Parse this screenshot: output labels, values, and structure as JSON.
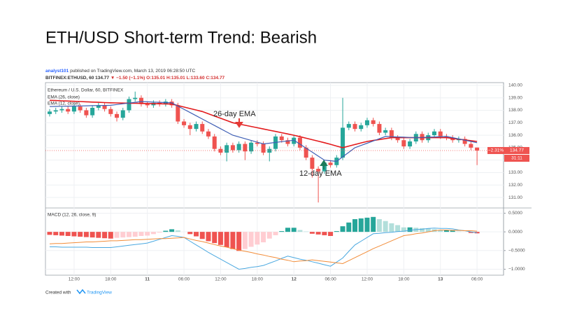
{
  "meta": {
    "author": "analyst101",
    "published": "published on TradingView.com, March 13, 2019 06:28:50 UTC",
    "symbol": "BITFINEX:ETHUSD, 60",
    "price": "134.77",
    "change": "▼ −1.50 (−1.1%)",
    "ohlc": [
      "O:135.01",
      "H:135.01",
      "L:133.60",
      "C:134.77"
    ]
  },
  "footer": {
    "created": "Created with",
    "brand": "TradingView"
  },
  "annotations": [
    "26-day EMA",
    "12-day EMA"
  ],
  "chart_data": [
    {
      "type": "candlestick",
      "title": "ETH/USD Short-term Trend: Bearish",
      "legend_title": "Ethereum / U.S. Dollar, 60, BITFINEX",
      "up_color": "#26a69a",
      "down_color": "#ef5350",
      "grid": true,
      "xticks": [
        {
          "value": 4,
          "label": "12:00"
        },
        {
          "value": 10,
          "label": "18:00"
        },
        {
          "value": 16,
          "label": "11"
        },
        {
          "value": 22,
          "label": "06:00"
        },
        {
          "value": 28,
          "label": "12:00"
        },
        {
          "value": 34,
          "label": "18:00"
        },
        {
          "value": 40,
          "label": "12"
        },
        {
          "value": 46,
          "label": "06:00"
        },
        {
          "value": 52,
          "label": "12:00"
        },
        {
          "value": 58,
          "label": "18:00"
        },
        {
          "value": 64,
          "label": "13"
        },
        {
          "value": 70,
          "label": "06:00"
        }
      ],
      "ylim": [
        130.16,
        140.22
      ],
      "yticks": [
        {
          "value": 131,
          "label": "131.00"
        },
        {
          "value": 132,
          "label": "132.00"
        },
        {
          "value": 133,
          "label": "133.00"
        },
        {
          "value": 134,
          "label": "134.00"
        },
        {
          "value": 135,
          "label": "135.00"
        },
        {
          "value": 136,
          "label": "136.00"
        },
        {
          "value": 137,
          "label": "137.00"
        },
        {
          "value": 138,
          "label": "138.00"
        },
        {
          "value": 139,
          "label": "139.00"
        },
        {
          "value": 140,
          "label": "140.00"
        }
      ],
      "change_label": "−2.31%",
      "countdown": "31:11",
      "open": [
        137.7,
        137.9,
        138.0,
        138.1,
        137.9,
        138.3,
        138.0,
        137.6,
        138.2,
        138.4,
        138.1,
        137.7,
        137.4,
        138.0,
        138.9,
        139.0,
        138.5,
        138.4,
        138.6,
        138.5,
        138.7,
        138.4,
        137.1,
        136.8,
        136.5,
        136.9,
        136.3,
        135.9,
        134.9,
        134.6,
        135.2,
        134.8,
        135.3,
        134.7,
        135.4,
        135.3,
        134.6,
        134.9,
        135.9,
        135.6,
        135.3,
        135.8,
        135.0,
        134.2,
        133.3,
        133.1,
        133.8,
        133.6,
        134.2,
        136.6,
        136.9,
        136.5,
        136.8,
        137.2,
        136.9,
        136.2,
        136.4,
        135.8,
        135.6,
        135.1,
        135.5,
        136.1,
        135.6,
        136.0,
        136.3,
        135.9,
        135.8,
        135.6,
        135.7,
        135.3,
        135.01
      ],
      "high": [
        138.1,
        138.2,
        138.3,
        138.3,
        138.5,
        138.5,
        138.2,
        138.4,
        138.6,
        138.6,
        138.3,
        137.9,
        138.2,
        139.1,
        139.5,
        139.2,
        138.7,
        138.8,
        138.8,
        138.9,
        138.9,
        138.6,
        137.3,
        137.0,
        137.1,
        137.1,
        136.5,
        136.1,
        135.1,
        135.4,
        135.4,
        135.5,
        135.5,
        135.6,
        135.6,
        135.5,
        135.1,
        136.1,
        136.1,
        135.8,
        136.0,
        136.0,
        135.2,
        134.4,
        133.5,
        134.0,
        134.0,
        134.4,
        139.0,
        137.1,
        137.1,
        137.0,
        137.4,
        137.4,
        137.1,
        136.6,
        136.6,
        136.0,
        135.8,
        135.7,
        136.3,
        136.3,
        136.2,
        136.5,
        136.5,
        136.1,
        136.0,
        135.9,
        135.9,
        135.5,
        135.01
      ],
      "low": [
        137.5,
        137.7,
        137.8,
        137.7,
        137.7,
        137.8,
        137.4,
        137.4,
        138.0,
        137.9,
        137.5,
        137.1,
        137.2,
        137.8,
        138.7,
        138.3,
        138.2,
        138.2,
        138.3,
        138.3,
        138.2,
        136.9,
        136.6,
        136.0,
        136.3,
        136.1,
        135.7,
        134.7,
        134.4,
        133.9,
        134.6,
        134.6,
        134.0,
        134.5,
        135.1,
        134.4,
        133.9,
        134.7,
        135.4,
        135.1,
        135.1,
        134.8,
        134.0,
        132.6,
        130.6,
        132.9,
        133.4,
        133.4,
        134.0,
        136.4,
        136.3,
        136.3,
        136.6,
        136.7,
        136.0,
        136.0,
        135.6,
        135.4,
        134.9,
        134.9,
        135.3,
        135.4,
        135.4,
        135.8,
        135.7,
        135.6,
        135.4,
        135.4,
        135.1,
        134.8,
        133.6
      ],
      "close": [
        137.9,
        138.0,
        138.1,
        137.9,
        138.3,
        138.0,
        137.6,
        138.2,
        138.4,
        138.1,
        137.7,
        137.4,
        138.0,
        138.9,
        139.0,
        138.5,
        138.4,
        138.6,
        138.5,
        138.7,
        138.4,
        137.1,
        136.8,
        136.5,
        136.9,
        136.3,
        135.9,
        134.9,
        134.6,
        135.2,
        134.8,
        135.3,
        134.7,
        135.4,
        135.3,
        134.6,
        134.9,
        135.9,
        135.6,
        135.3,
        135.8,
        135.0,
        134.2,
        133.3,
        133.1,
        133.8,
        133.6,
        134.2,
        136.6,
        136.9,
        136.5,
        136.8,
        137.2,
        136.9,
        136.2,
        136.4,
        135.8,
        135.6,
        135.1,
        135.5,
        136.1,
        135.6,
        136.0,
        136.3,
        135.9,
        135.8,
        135.6,
        135.7,
        135.3,
        135.0,
        134.77
      ],
      "series": [
        {
          "name": "EMA (26, close)",
          "color": "#e31a1c",
          "values": [
            138.8,
            138.78,
            138.76,
            138.74,
            138.72,
            138.7,
            138.68,
            138.66,
            138.64,
            138.62,
            138.6,
            138.59,
            138.58,
            138.57,
            138.56,
            138.55,
            138.54,
            138.53,
            138.52,
            138.51,
            138.5,
            138.38,
            138.26,
            138.14,
            138.02,
            137.9,
            137.72,
            137.54,
            137.36,
            137.18,
            137.0,
            136.9,
            136.8,
            136.7,
            136.6,
            136.5,
            136.4,
            136.3,
            136.2,
            136.1,
            136.0,
            135.88,
            135.76,
            135.64,
            135.52,
            135.4,
            135.27,
            135.13,
            135.0,
            135.13,
            135.25,
            135.38,
            135.5,
            135.58,
            135.65,
            135.73,
            135.8,
            135.8,
            135.8,
            135.8,
            135.8,
            135.8,
            135.8,
            135.8,
            135.8,
            135.8,
            135.74,
            135.68,
            135.62,
            135.56,
            135.5
          ]
        },
        {
          "name": "EMA (12, close)",
          "color": "#3f5fb5",
          "values": [
            138.3,
            138.31,
            138.32,
            138.33,
            138.34,
            138.35,
            138.36,
            138.37,
            138.38,
            138.39,
            138.4,
            138.46,
            138.52,
            138.58,
            138.64,
            138.7,
            138.68,
            138.66,
            138.64,
            138.62,
            138.6,
            138.34,
            138.08,
            137.82,
            137.56,
            137.3,
            137.04,
            136.78,
            136.52,
            136.26,
            136.0,
            135.86,
            135.72,
            135.58,
            135.44,
            135.3,
            135.36,
            135.42,
            135.48,
            135.54,
            135.6,
            135.28,
            134.96,
            134.64,
            134.32,
            134.0,
            133.95,
            133.9,
            134.27,
            134.63,
            135.0,
            135.18,
            135.36,
            135.54,
            135.72,
            135.9,
            135.88,
            135.86,
            135.84,
            135.82,
            135.8,
            135.82,
            135.84,
            135.86,
            135.88,
            135.9,
            135.8,
            135.7,
            135.6,
            135.5,
            135.4
          ]
        }
      ]
    },
    {
      "type": "macd",
      "title": "MACD (12, 26, close, 9)",
      "ylim": [
        -1.16,
        0.64
      ],
      "yticks": [
        {
          "value": 0.5,
          "label": "0.5000"
        },
        {
          "value": 0,
          "label": "0.0000"
        },
        {
          "value": -0.5,
          "label": "−0.5000"
        },
        {
          "value": -1,
          "label": "−1.0000"
        }
      ],
      "histogram_colors": [
        "#26a69a",
        "#b2dfdb",
        "#ef5350",
        "#ffcdd2"
      ],
      "histogram": [
        -0.08,
        -0.09,
        -0.1,
        -0.11,
        -0.12,
        -0.13,
        -0.14,
        -0.15,
        -0.16,
        -0.17,
        -0.18,
        -0.16,
        -0.15,
        -0.14,
        -0.13,
        -0.11,
        -0.1,
        -0.06,
        -0.02,
        0.03,
        0.07,
        0.04,
        0,
        -0.06,
        -0.12,
        -0.19,
        -0.25,
        -0.3,
        -0.35,
        -0.41,
        -0.46,
        -0.51,
        -0.46,
        -0.4,
        -0.34,
        -0.28,
        -0.18,
        -0.09,
        0.02,
        0.11,
        0.11,
        0.05,
        0.01,
        -0.05,
        -0.07,
        -0.09,
        -0.11,
        0.02,
        0.15,
        0.25,
        0.34,
        0.36,
        0.38,
        0.4,
        0.34,
        0.29,
        0.23,
        0.18,
        0.12,
        0.12,
        0.11,
        0.1,
        0.09,
        0.07,
        0.04,
        0.04,
        0.04,
        0.01,
        0,
        -0.03,
        -0.04
      ],
      "series": [
        {
          "color": "#4aa8e0",
          "values": [
            -0.4,
            -0.4,
            -0.41,
            -0.41,
            -0.41,
            -0.41,
            -0.41,
            -0.42,
            -0.42,
            -0.42,
            -0.42,
            -0.4,
            -0.38,
            -0.36,
            -0.34,
            -0.32,
            -0.3,
            -0.25,
            -0.2,
            -0.15,
            -0.1,
            -0.12,
            -0.15,
            -0.25,
            -0.35,
            -0.45,
            -0.55,
            -0.64,
            -0.73,
            -0.82,
            -0.91,
            -1.0,
            -0.98,
            -0.95,
            -0.93,
            -0.9,
            -0.84,
            -0.78,
            -0.71,
            -0.65,
            -0.69,
            -0.73,
            -0.76,
            -0.8,
            -0.84,
            -0.88,
            -0.92,
            -0.81,
            -0.7,
            -0.52,
            -0.35,
            -0.25,
            -0.15,
            -0.05,
            -0.04,
            -0.02,
            -0.01,
            0.01,
            0.02,
            0.04,
            0.06,
            0.07,
            0.09,
            0.1,
            0.09,
            0.09,
            0.08,
            0.05,
            0.03,
            0.0,
            -0.02
          ]
        },
        {
          "color": "#f28c38",
          "values": [
            -0.32,
            -0.31,
            -0.31,
            -0.3,
            -0.29,
            -0.28,
            -0.27,
            -0.27,
            -0.26,
            -0.25,
            -0.24,
            -0.24,
            -0.23,
            -0.22,
            -0.21,
            -0.21,
            -0.2,
            -0.19,
            -0.18,
            -0.18,
            -0.17,
            -0.16,
            -0.15,
            -0.19,
            -0.23,
            -0.26,
            -0.3,
            -0.34,
            -0.38,
            -0.41,
            -0.45,
            -0.49,
            -0.52,
            -0.55,
            -0.59,
            -0.62,
            -0.66,
            -0.69,
            -0.73,
            -0.76,
            -0.8,
            -0.78,
            -0.77,
            -0.75,
            -0.77,
            -0.79,
            -0.81,
            -0.83,
            -0.85,
            -0.77,
            -0.69,
            -0.61,
            -0.53,
            -0.45,
            -0.38,
            -0.31,
            -0.24,
            -0.17,
            -0.1,
            -0.08,
            -0.05,
            -0.03,
            0.0,
            0.03,
            0.05,
            0.05,
            0.04,
            0.04,
            0.03,
            0.03,
            0.02
          ]
        }
      ]
    }
  ]
}
